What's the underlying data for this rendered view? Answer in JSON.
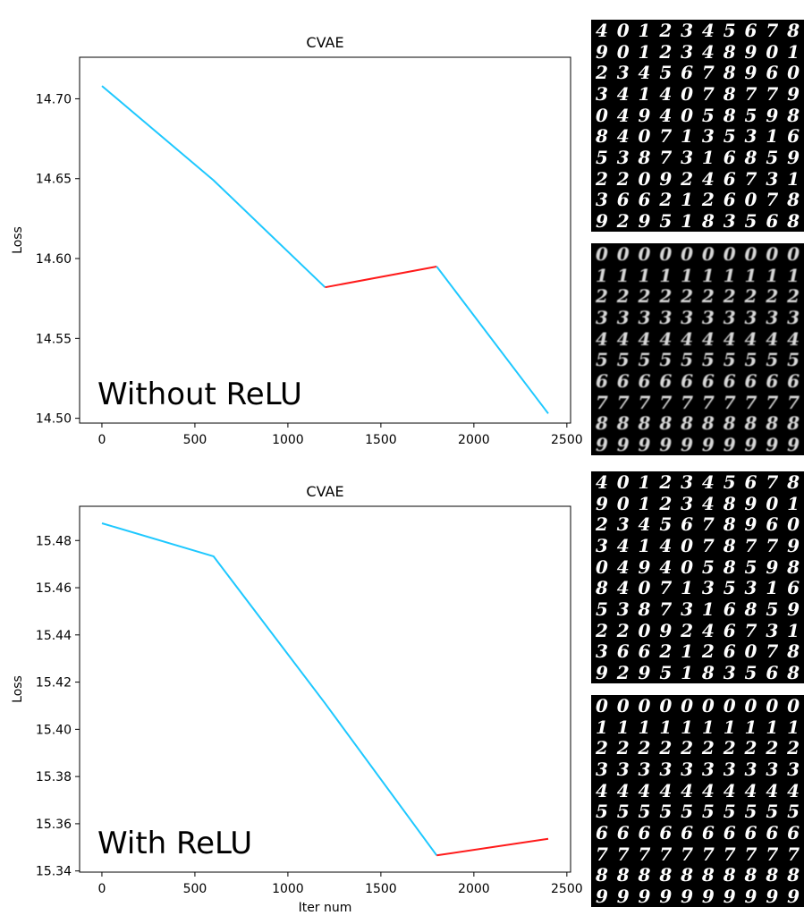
{
  "chart_data": [
    {
      "type": "line",
      "title": "CVAE",
      "xlabel": "",
      "ylabel": "Loss",
      "annotation": "Without ReLU",
      "xlim": [
        -120,
        2520
      ],
      "ylim": [
        14.497,
        14.726
      ],
      "x_ticks": [
        0,
        500,
        1000,
        1500,
        2000,
        2500
      ],
      "y_ticks": [
        "14.50",
        "14.55",
        "14.60",
        "14.65",
        "14.70"
      ],
      "series": [
        {
          "color": "#1ec8ff",
          "x": [
            0,
            600,
            1200
          ],
          "y": [
            14.708,
            14.649,
            14.582
          ]
        },
        {
          "color": "#ff1a1a",
          "x": [
            1200,
            1800
          ],
          "y": [
            14.582,
            14.595
          ]
        },
        {
          "color": "#1ec8ff",
          "x": [
            1800,
            2400
          ],
          "y": [
            14.595,
            14.503
          ]
        }
      ]
    },
    {
      "type": "line",
      "title": "CVAE",
      "xlabel": "Iter num",
      "ylabel": "Loss",
      "annotation": "With ReLU",
      "xlim": [
        -120,
        2520
      ],
      "ylim": [
        15.3395,
        15.4945
      ],
      "x_ticks": [
        0,
        500,
        1000,
        1500,
        2000,
        2500
      ],
      "y_ticks": [
        "15.34",
        "15.36",
        "15.38",
        "15.40",
        "15.42",
        "15.44",
        "15.46",
        "15.48"
      ],
      "series": [
        {
          "color": "#1ec8ff",
          "x": [
            0,
            600,
            1200,
            1800
          ],
          "y": [
            15.4873,
            15.4733,
            15.411,
            15.3466
          ]
        },
        {
          "color": "#ff1a1a",
          "x": [
            1800,
            2400
          ],
          "y": [
            15.3466,
            15.3536
          ]
        }
      ]
    }
  ],
  "digit_grids": [
    {
      "name": "grid-1",
      "blur": false,
      "rows": [
        "4012345678",
        "9012348901",
        "2345678960",
        "3414078779",
        "0494058598",
        "8407135316",
        "5387316859",
        "2209246731",
        "3662126078",
        "9295183568"
      ]
    },
    {
      "name": "grid-2",
      "blur": true,
      "rows": [
        "0000000000",
        "1111111111",
        "2222222222",
        "3333333333",
        "4444444444",
        "5555555555",
        "6666666666",
        "7777777777",
        "8888888888",
        "9999999999"
      ]
    },
    {
      "name": "grid-3",
      "blur": false,
      "rows": [
        "4012345678",
        "9012348901",
        "2345678960",
        "3414078779",
        "0494058598",
        "8407135316",
        "5387316859",
        "2209246731",
        "3662126078",
        "9295183568"
      ]
    },
    {
      "name": "grid-4",
      "blur": false,
      "rows": [
        "0000000000",
        "1111111111",
        "2222222222",
        "3333333333",
        "4444444444",
        "5555555555",
        "6666666666",
        "7777777777",
        "8888888888",
        "9999999999"
      ]
    }
  ]
}
